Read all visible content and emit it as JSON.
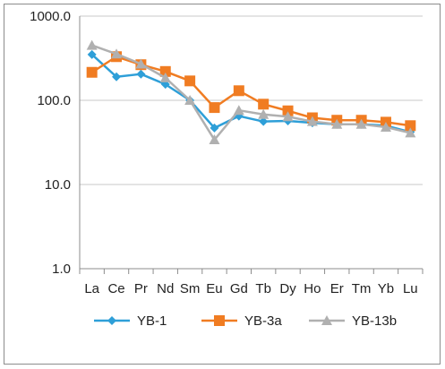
{
  "chart_data": {
    "type": "line",
    "yscale": "log",
    "ylim": [
      1,
      1000
    ],
    "yticks": [
      "1000.0",
      "100.0",
      "10.0",
      "1.0"
    ],
    "ytick_values": [
      1000,
      100,
      10,
      1
    ],
    "categories": [
      "La",
      "Ce",
      "Pr",
      "Nd",
      "Sm",
      "Eu",
      "Gd",
      "Tb",
      "Dy",
      "Ho",
      "Er",
      "Tm",
      "Yb",
      "Lu"
    ],
    "grid": true,
    "legend_position": "bottom",
    "series": [
      {
        "name": "YB-1",
        "color": "#2e9fd8",
        "marker": "diamond",
        "values": [
          350,
          190,
          205,
          155,
          100,
          47,
          65,
          56,
          57,
          54,
          52,
          52,
          50,
          42
        ]
      },
      {
        "name": "YB-3a",
        "color": "#f07c22",
        "marker": "square",
        "values": [
          215,
          330,
          265,
          220,
          170,
          82,
          130,
          90,
          75,
          62,
          58,
          58,
          55,
          50
        ]
      },
      {
        "name": "YB-13b",
        "color": "#b0b0b0",
        "marker": "triangle",
        "values": [
          450,
          355,
          270,
          185,
          100,
          34,
          76,
          68,
          64,
          56,
          52,
          52,
          48,
          41
        ]
      }
    ]
  }
}
